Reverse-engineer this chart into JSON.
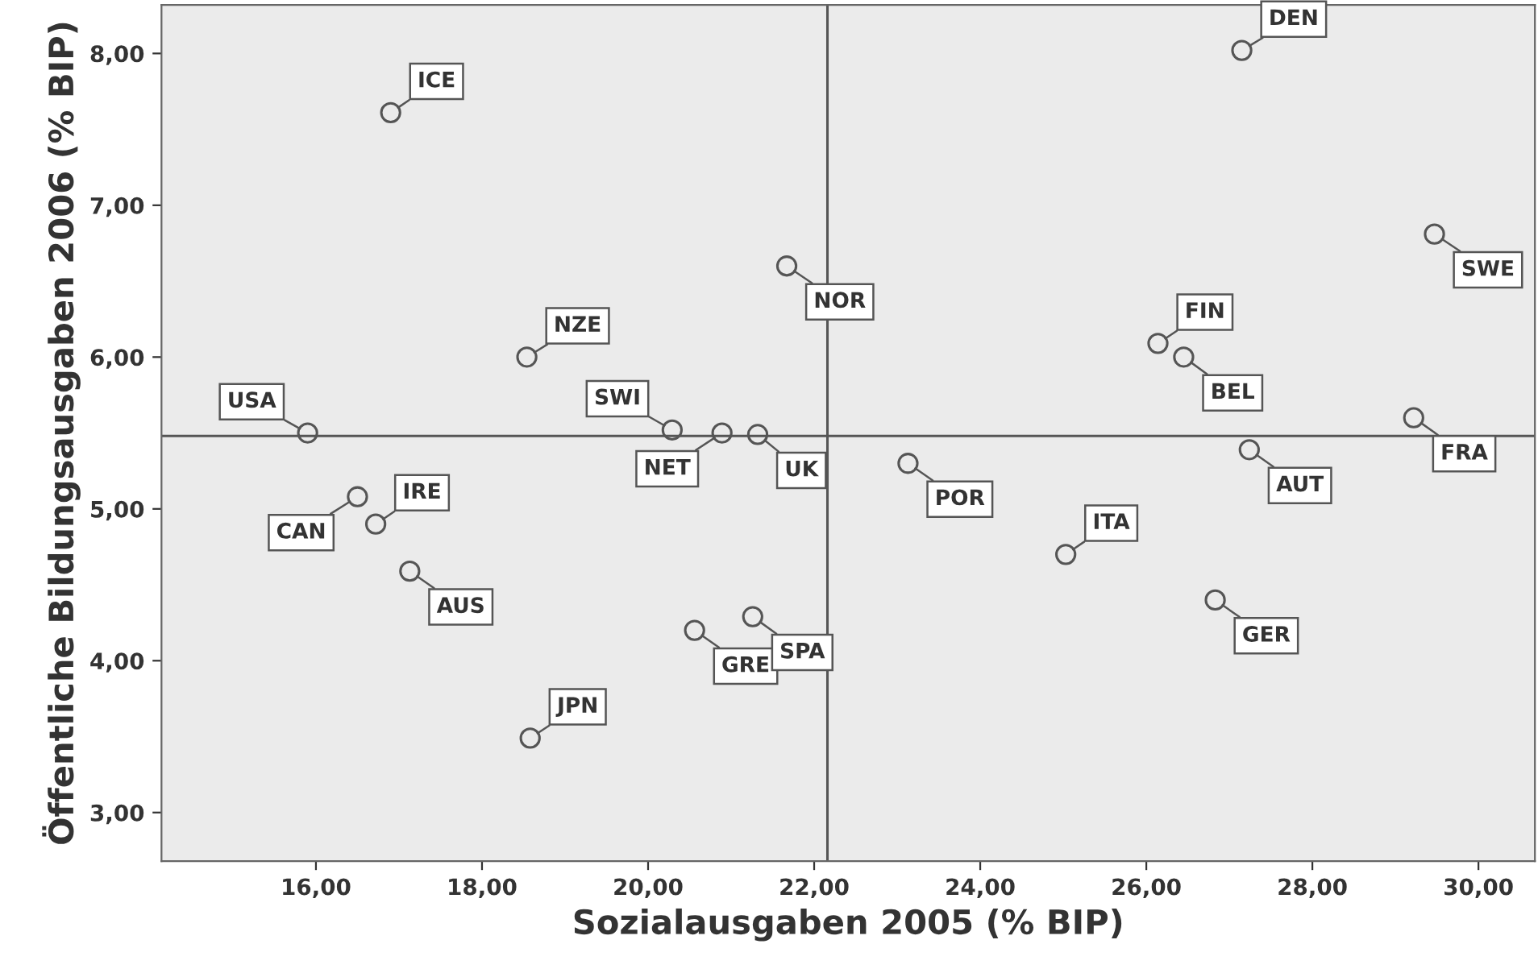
{
  "chart_data": {
    "type": "scatter",
    "xlabel": "Sozialausgaben 2005 (% BIP)",
    "ylabel": "Öffentliche Bildungsausgaben 2006 (% BIP)",
    "x": [
      16.9,
      27.15,
      29.47,
      21.67,
      18.54,
      26.14,
      26.45,
      15.9,
      20.29,
      20.89,
      21.32,
      29.22,
      16.5,
      16.72,
      23.13,
      27.24,
      17.13,
      25.03,
      26.83,
      20.56,
      21.26,
      18.58
    ],
    "series": [
      {
        "color": "#555555",
        "values": [
          7.61,
          8.02,
          6.81,
          6.6,
          6.0,
          6.09,
          6.0,
          5.5,
          5.52,
          5.5,
          5.49,
          5.6,
          5.08,
          4.9,
          5.3,
          5.39,
          4.59,
          4.7,
          4.4,
          4.2,
          4.29,
          3.49
        ]
      }
    ],
    "marker": "circle",
    "xlim": [
      14.14,
      30.68
    ],
    "ylim": [
      2.68,
      8.32
    ],
    "xticks": [
      {
        "value": 16,
        "label": "16,00"
      },
      {
        "value": 18,
        "label": "18,00"
      },
      {
        "value": 20,
        "label": "20,00"
      },
      {
        "value": 22,
        "label": "22,00"
      },
      {
        "value": 24,
        "label": "24,00"
      },
      {
        "value": 26,
        "label": "26,00"
      },
      {
        "value": 28,
        "label": "28,00"
      },
      {
        "value": 30,
        "label": "30,00"
      }
    ],
    "yticks": [
      {
        "value": 3,
        "label": "3,00"
      },
      {
        "value": 4,
        "label": "4,00"
      },
      {
        "value": 5,
        "label": "5,00"
      },
      {
        "value": 6,
        "label": "6,00"
      },
      {
        "value": 7,
        "label": "7,00"
      },
      {
        "value": 8,
        "label": "8,00"
      }
    ],
    "ref_lines": [
      {
        "axis": "x",
        "value": 22.16,
        "color": "#555555"
      },
      {
        "axis": "y",
        "value": 5.48,
        "color": "#555555"
      }
    ],
    "grid": false,
    "legend": false,
    "annotations": [
      {
        "text": "ICE",
        "x": 16.9,
        "y": 7.61
      },
      {
        "text": "DEN",
        "x": 27.15,
        "y": 8.02
      },
      {
        "text": "SWE",
        "x": 29.47,
        "y": 6.81
      },
      {
        "text": "NOR",
        "x": 21.67,
        "y": 6.6
      },
      {
        "text": "NZE",
        "x": 18.54,
        "y": 6.0
      },
      {
        "text": "FIN",
        "x": 26.14,
        "y": 6.09
      },
      {
        "text": "BEL",
        "x": 26.45,
        "y": 6.0
      },
      {
        "text": "USA",
        "x": 15.9,
        "y": 5.5
      },
      {
        "text": "SWI",
        "x": 20.29,
        "y": 5.52
      },
      {
        "text": "NET",
        "x": 20.89,
        "y": 5.5
      },
      {
        "text": "UK",
        "x": 21.32,
        "y": 5.49
      },
      {
        "text": "FRA",
        "x": 29.22,
        "y": 5.6
      },
      {
        "text": "CAN",
        "x": 16.5,
        "y": 5.08
      },
      {
        "text": "IRE",
        "x": 16.72,
        "y": 4.9
      },
      {
        "text": "POR",
        "x": 23.13,
        "y": 5.3
      },
      {
        "text": "AUT",
        "x": 27.24,
        "y": 5.39
      },
      {
        "text": "AUS",
        "x": 17.13,
        "y": 4.59
      },
      {
        "text": "ITA",
        "x": 25.03,
        "y": 4.7
      },
      {
        "text": "GER",
        "x": 26.83,
        "y": 4.4
      },
      {
        "text": "GRE",
        "x": 20.56,
        "y": 4.2
      },
      {
        "text": "SPA",
        "x": 21.26,
        "y": 4.29
      },
      {
        "text": "JPN",
        "x": 18.58,
        "y": 3.49
      }
    ]
  }
}
